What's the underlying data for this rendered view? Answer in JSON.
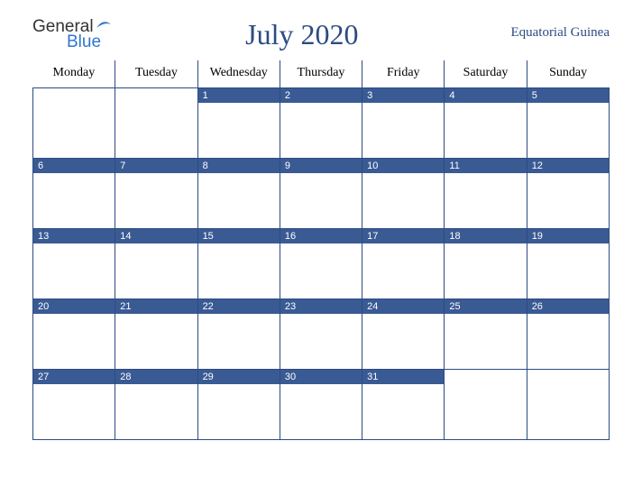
{
  "logo": {
    "word1": "General",
    "word2": "Blue"
  },
  "title": "July 2020",
  "region": "Equatorial Guinea",
  "calendar": {
    "day_header_bg": "#ffffff",
    "day_header_color": "#000000",
    "daynum_bg": "#3a5a94",
    "daynum_color": "#ffffff",
    "border_color": "#2c4b82",
    "title_color": "#2c4b82",
    "headers": [
      "Monday",
      "Tuesday",
      "Wednesday",
      "Thursday",
      "Friday",
      "Saturday",
      "Sunday"
    ],
    "weeks": [
      [
        {
          "n": "",
          "e": true
        },
        {
          "n": "",
          "e": true
        },
        {
          "n": "1"
        },
        {
          "n": "2"
        },
        {
          "n": "3"
        },
        {
          "n": "4"
        },
        {
          "n": "5"
        }
      ],
      [
        {
          "n": "6"
        },
        {
          "n": "7"
        },
        {
          "n": "8"
        },
        {
          "n": "9"
        },
        {
          "n": "10"
        },
        {
          "n": "11"
        },
        {
          "n": "12"
        }
      ],
      [
        {
          "n": "13"
        },
        {
          "n": "14"
        },
        {
          "n": "15"
        },
        {
          "n": "16"
        },
        {
          "n": "17"
        },
        {
          "n": "18"
        },
        {
          "n": "19"
        }
      ],
      [
        {
          "n": "20"
        },
        {
          "n": "21"
        },
        {
          "n": "22"
        },
        {
          "n": "23"
        },
        {
          "n": "24"
        },
        {
          "n": "25"
        },
        {
          "n": "26"
        }
      ],
      [
        {
          "n": "27"
        },
        {
          "n": "28"
        },
        {
          "n": "29"
        },
        {
          "n": "30"
        },
        {
          "n": "31"
        },
        {
          "n": "",
          "e": true
        },
        {
          "n": "",
          "e": true
        }
      ]
    ]
  }
}
